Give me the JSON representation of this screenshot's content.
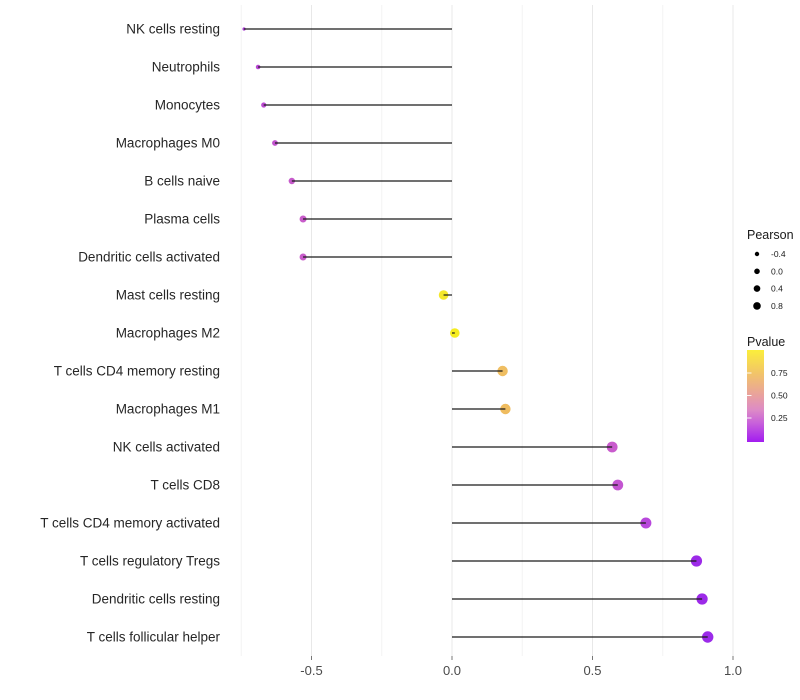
{
  "chart_data": {
    "type": "scatter",
    "variant": "lollipop",
    "orientation": "horizontal",
    "title": "",
    "xlabel": "",
    "ylabel": "",
    "xlim": [
      -0.8,
      1.01
    ],
    "grid": {
      "major_x": [
        -0.5,
        0.0,
        0.5,
        1.0
      ],
      "minor_x": [
        -0.75,
        -0.25,
        0.25,
        0.75
      ],
      "horizontal": false
    },
    "x_ticks": [
      {
        "value": -0.5,
        "label": "-0.5"
      },
      {
        "value": 0.0,
        "label": "0.0"
      },
      {
        "value": 0.5,
        "label": "0.5"
      },
      {
        "value": 1.0,
        "label": "1.0"
      }
    ],
    "rows": [
      {
        "category": "NK cells resting",
        "pearson": -0.74,
        "dot_color": "#A73CD1",
        "dot_radius": 1.6
      },
      {
        "category": "Neutrophils",
        "pearson": -0.69,
        "dot_color": "#B847D3",
        "dot_radius": 2.3
      },
      {
        "category": "Monocytes",
        "pearson": -0.67,
        "dot_color": "#BC4CD2",
        "dot_radius": 2.6
      },
      {
        "category": "Macrophages M0",
        "pearson": -0.63,
        "dot_color": "#C253CE",
        "dot_radius": 2.9
      },
      {
        "category": "B cells naive",
        "pearson": -0.57,
        "dot_color": "#C65ACB",
        "dot_radius": 3.2
      },
      {
        "category": "Plasma cells",
        "pearson": -0.53,
        "dot_color": "#C85CCA",
        "dot_radius": 3.5
      },
      {
        "category": "Dendritic cells activated",
        "pearson": -0.53,
        "dot_color": "#C85CCA",
        "dot_radius": 3.5
      },
      {
        "category": "Mast cells resting",
        "pearson": -0.03,
        "dot_color": "#F4E72B",
        "dot_radius": 4.8
      },
      {
        "category": "Macrophages M2",
        "pearson": 0.01,
        "dot_color": "#F5EC1F",
        "dot_radius": 4.8
      },
      {
        "category": "T cells CD4 memory resting",
        "pearson": 0.18,
        "dot_color": "#EFBE62",
        "dot_radius": 5.2
      },
      {
        "category": "Macrophages M1",
        "pearson": 0.19,
        "dot_color": "#EFBC5F",
        "dot_radius": 5.2
      },
      {
        "category": "NK cells activated",
        "pearson": 0.57,
        "dot_color": "#C95BCD",
        "dot_radius": 5.4
      },
      {
        "category": "T cells CD8",
        "pearson": 0.59,
        "dot_color": "#C355D1",
        "dot_radius": 5.4
      },
      {
        "category": "T cells CD4 memory activated",
        "pearson": 0.69,
        "dot_color": "#B847DC",
        "dot_radius": 5.5
      },
      {
        "category": "T cells regulatory  Tregs",
        "pearson": 0.87,
        "dot_color": "#9C2AE8",
        "dot_radius": 5.6
      },
      {
        "category": "Dendritic cells resting",
        "pearson": 0.89,
        "dot_color": "#9C2AE8",
        "dot_radius": 5.6
      },
      {
        "category": "T cells follicular helper",
        "pearson": 0.91,
        "dot_color": "#9B2BE9",
        "dot_radius": 5.7
      }
    ],
    "legend_size": {
      "title": "Pearson",
      "entries": [
        {
          "label": "-0.4",
          "radius": 2.2
        },
        {
          "label": "0.0",
          "radius": 2.8
        },
        {
          "label": "0.4",
          "radius": 3.3
        },
        {
          "label": "0.8",
          "radius": 3.8
        }
      ],
      "dot_color": "#000000"
    },
    "legend_color": {
      "title": "Pvalue",
      "tick_labels": [
        "0.75",
        "0.50",
        "0.25"
      ],
      "gradient_stops": [
        {
          "offset": 0.0,
          "color": "#FBEE3B"
        },
        {
          "offset": 0.25,
          "color": "#F2C568"
        },
        {
          "offset": 0.5,
          "color": "#E8A0A0"
        },
        {
          "offset": 0.65,
          "color": "#DD8BC6"
        },
        {
          "offset": 0.8,
          "color": "#C75FDB"
        },
        {
          "offset": 1.0,
          "color": "#A21CF0"
        }
      ]
    },
    "style": {
      "stem_color": "#1A1A1A",
      "major_grid_color": "#E8E8E8",
      "minor_grid_color": "#F3F3F3",
      "axis_tick_color": "#777777",
      "axis_text_color": "#4A4A4A",
      "category_text_color": "#262626"
    }
  }
}
